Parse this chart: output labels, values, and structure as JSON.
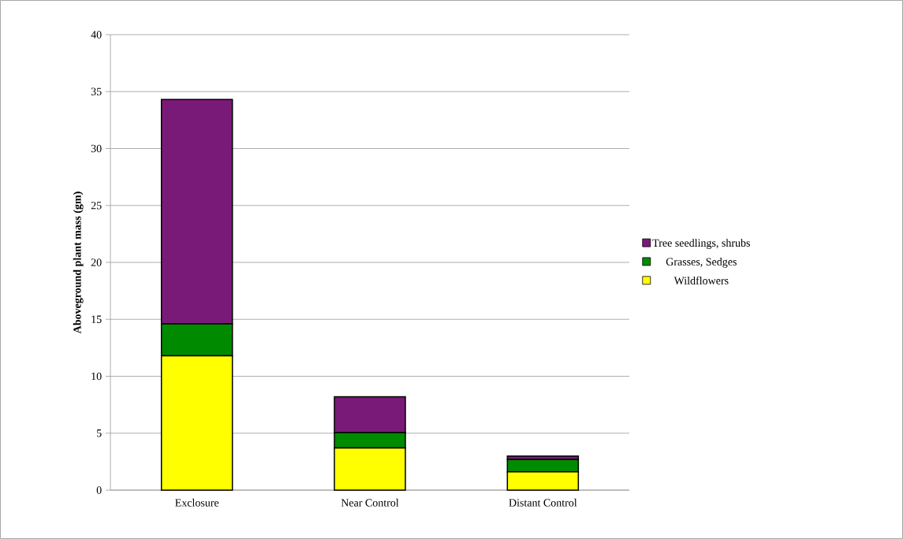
{
  "chart_data": {
    "type": "bar",
    "stacked": true,
    "ylabel": "Aboveground plant mass (gm)",
    "categories": [
      "Exclosure",
      "Near Control",
      "Distant Control"
    ],
    "series": [
      {
        "name": "Wildflowers",
        "color": "#ffff00",
        "values": [
          11.8,
          3.7,
          1.6
        ]
      },
      {
        "name": "Grasses, Sedges",
        "color": "#008a00",
        "values": [
          2.8,
          1.35,
          1.1
        ]
      },
      {
        "name": "Tree seedlings, shrubs",
        "color": "#7a1a78",
        "values": [
          19.7,
          3.15,
          0.3
        ]
      }
    ],
    "ylim": [
      0,
      40
    ],
    "yticks": [
      0,
      5,
      10,
      15,
      20,
      25,
      30,
      35,
      40
    ],
    "grid": "y",
    "legend": "right"
  }
}
